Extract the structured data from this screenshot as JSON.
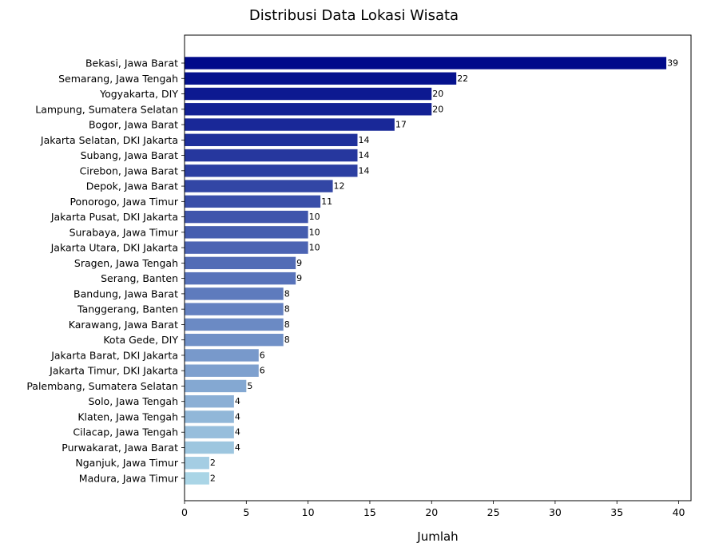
{
  "chart_data": {
    "type": "bar",
    "orientation": "horizontal",
    "title": "Distribusi Data Lokasi Wisata",
    "xlabel": "Jumlah",
    "ylabel": "",
    "xlim": [
      0,
      41
    ],
    "xticks": [
      0,
      5,
      10,
      15,
      20,
      25,
      30,
      35,
      40
    ],
    "grid": false,
    "color_scale": [
      "#000a8a",
      "#aad5e6"
    ],
    "categories": [
      "Bekasi, Jawa Barat",
      "Semarang, Jawa Tengah",
      "Yogyakarta, DIY",
      "Lampung, Sumatera Selatan",
      "Bogor, Jawa Barat",
      "Jakarta Selatan, DKI Jakarta",
      "Subang, Jawa Barat",
      "Cirebon, Jawa Barat",
      "Depok, Jawa Barat",
      "Ponorogo, Jawa Timur",
      "Jakarta Pusat, DKI Jakarta",
      "Surabaya, Jawa Timur",
      "Jakarta Utara, DKI Jakarta",
      "Sragen, Jawa Tengah",
      "Serang, Banten",
      "Bandung, Jawa Barat",
      "Tanggerang, Banten",
      "Karawang, Jawa Barat",
      "Kota Gede, DIY",
      "Jakarta Barat, DKI Jakarta",
      "Jakarta Timur, DKI Jakarta",
      "Palembang, Sumatera Selatan",
      "Solo, Jawa Tengah",
      "Klaten, Jawa Tengah",
      "Cilacap, Jawa Tengah",
      "Purwakarat, Jawa Barat",
      "Nganjuk, Jawa Timur",
      "Madura, Jawa Timur"
    ],
    "values": [
      39,
      22,
      20,
      20,
      17,
      14,
      14,
      14,
      12,
      11,
      10,
      10,
      10,
      9,
      9,
      8,
      8,
      8,
      8,
      6,
      6,
      5,
      4,
      4,
      4,
      4,
      2,
      2
    ]
  }
}
